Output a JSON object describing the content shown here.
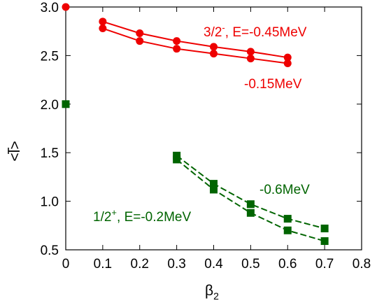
{
  "chart_data": {
    "type": "line",
    "xlabel": {
      "base": "β",
      "sub": "2"
    },
    "ylabel": {
      "text": "<l>",
      "overbar": true
    },
    "xlim": [
      0,
      0.8
    ],
    "ylim": [
      0.5,
      3.0
    ],
    "xticks": [
      "0",
      "0.1",
      "0.2",
      "0.3",
      "0.4",
      "0.5",
      "0.6",
      "0.7",
      "0.8"
    ],
    "yticks": [
      "0.5",
      "1.0",
      "1.5",
      "2.0",
      "2.5",
      "3.0"
    ],
    "grid": false,
    "colors": {
      "red": "#ee0000",
      "green": "#006400"
    },
    "series": [
      {
        "group": "3/2-",
        "color": "#ee0000",
        "marker": "circle",
        "dash": false,
        "x": [
          0.1,
          0.2,
          0.3,
          0.4,
          0.5,
          0.6
        ],
        "y": [
          2.85,
          2.73,
          2.65,
          2.59,
          2.54,
          2.48
        ]
      },
      {
        "group": "3/2-",
        "color": "#ee0000",
        "marker": "circle",
        "dash": false,
        "x": [
          0.1,
          0.2,
          0.3,
          0.4,
          0.5,
          0.6
        ],
        "y": [
          2.78,
          2.65,
          2.57,
          2.52,
          2.47,
          2.42
        ]
      },
      {
        "group": "3/2-",
        "color": "#ee0000",
        "marker": "circle",
        "dash": false,
        "x": [
          0.0
        ],
        "y": [
          3.0
        ]
      },
      {
        "group": "1/2+",
        "color": "#006400",
        "marker": "square",
        "dash": true,
        "x": [
          0.3,
          0.4,
          0.5,
          0.6,
          0.7
        ],
        "y": [
          1.47,
          1.18,
          0.97,
          0.82,
          0.72
        ]
      },
      {
        "group": "1/2+",
        "color": "#006400",
        "marker": "square",
        "dash": true,
        "x": [
          0.3,
          0.4,
          0.5,
          0.6,
          0.7
        ],
        "y": [
          1.43,
          1.12,
          0.88,
          0.7,
          0.59
        ]
      },
      {
        "group": "1/2+",
        "color": "#006400",
        "marker": "square",
        "dash": false,
        "x": [
          0.0
        ],
        "y": [
          2.0
        ]
      }
    ],
    "annotations": {
      "red_main": {
        "base": "3/2",
        "sup": "-",
        "rest": ", E=-0.45MeV"
      },
      "red_second": "-0.15MeV",
      "green_main": {
        "base": "1/2",
        "sup": "+",
        "rest": ", E=-0.2MeV"
      },
      "green_second": "-0.6MeV"
    }
  }
}
